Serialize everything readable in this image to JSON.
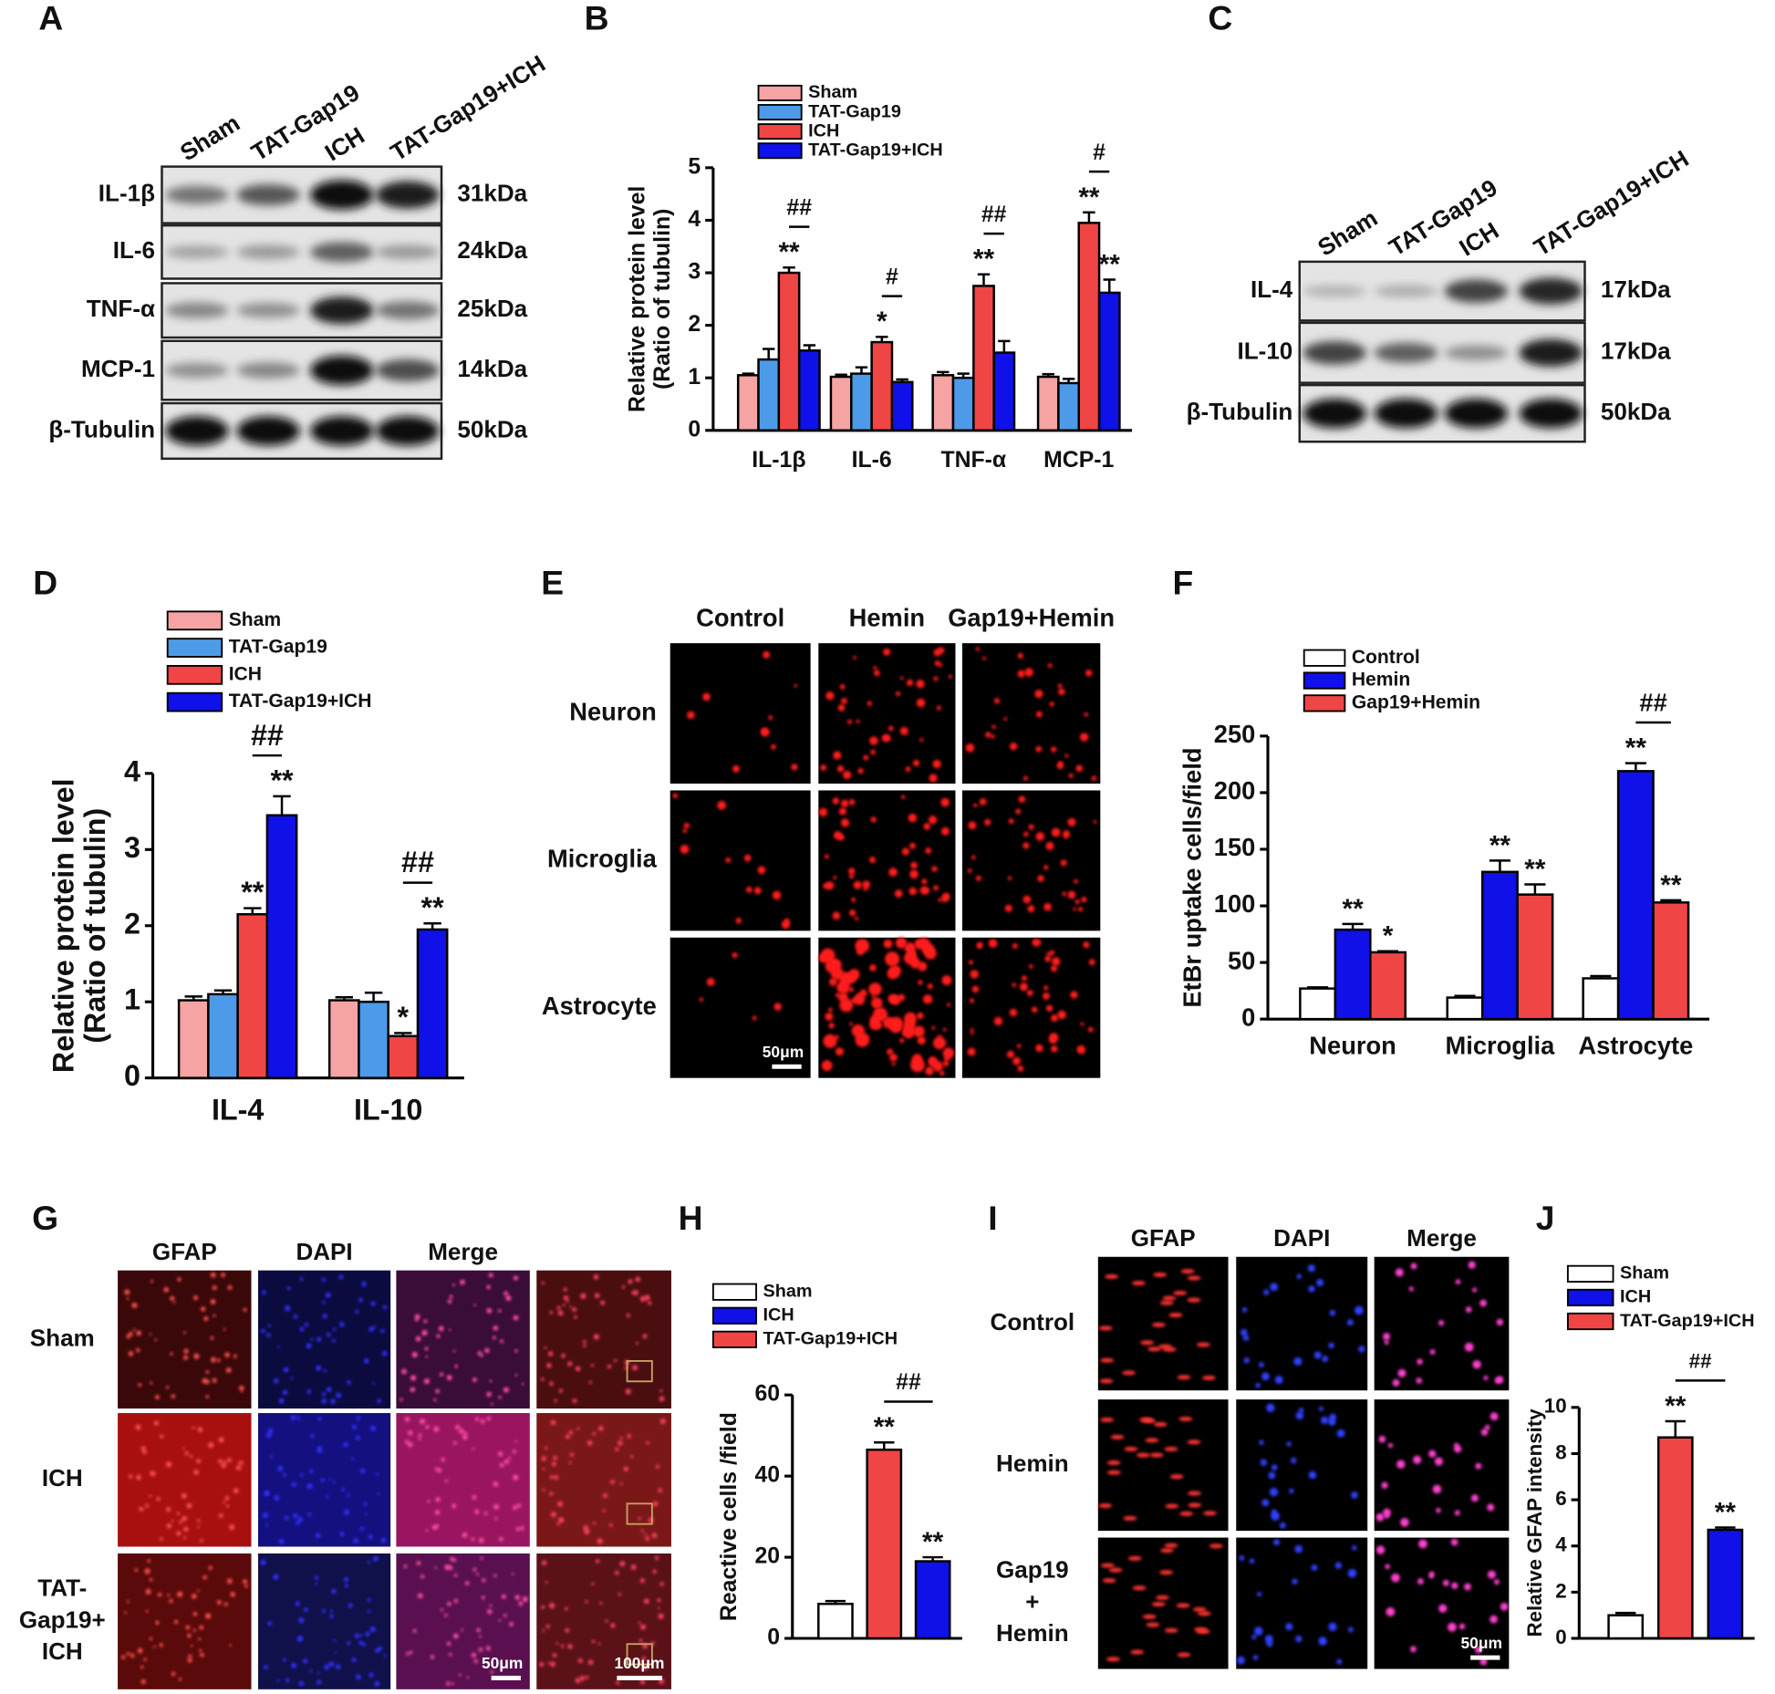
{
  "panel_labels": [
    "A",
    "B",
    "C",
    "D",
    "E",
    "F",
    "G",
    "H",
    "I",
    "J"
  ],
  "blots": [
    {
      "lanes": [
        "Sham",
        "TAT-Gap19",
        "ICH",
        "TAT-Gap19+ICH"
      ],
      "rows": [
        {
          "label": "IL-1β",
          "size": "31kDa"
        },
        {
          "label": "IL-6",
          "size": "24kDa"
        },
        {
          "label": "TNF-α",
          "size": "25kDa"
        },
        {
          "label": "MCP-1",
          "size": "14kDa"
        },
        {
          "label": "β-Tubulin",
          "size": "50kDa"
        }
      ]
    },
    {
      "lanes": [
        "Sham",
        "TAT-Gap19",
        "ICH",
        "TAT-Gap19+ICH"
      ],
      "rows": [
        {
          "label": "IL-4",
          "size": "17kDa"
        },
        {
          "label": "IL-10",
          "size": "17kDa"
        },
        {
          "label": "β-Tubulin",
          "size": "50kDa"
        }
      ]
    }
  ],
  "micrographs": [
    {
      "columns": [
        "Control",
        "Hemin",
        "Gap19+Hemin"
      ],
      "rows": [
        [
          "Neuron"
        ],
        [
          "Microglia"
        ],
        [
          "Astrocyte"
        ]
      ],
      "scale_bars": [
        "50μm"
      ]
    },
    {
      "columns": [
        "GFAP",
        "DAPI",
        "Merge"
      ],
      "rows": [
        [
          "Sham"
        ],
        [
          "ICH"
        ],
        [
          "TAT-",
          "Gap19+",
          "ICH"
        ]
      ],
      "scale_bars": [
        "50μm",
        "100μm"
      ]
    },
    {
      "columns": [
        "GFAP",
        "DAPI",
        "Merge"
      ],
      "rows": [
        [
          "Control"
        ],
        [
          "Hemin"
        ],
        [
          "Gap19",
          "+",
          "Hemin"
        ]
      ],
      "scale_bars": [
        "50μm"
      ]
    }
  ],
  "chart_data": [
    {
      "type": "bar",
      "ylabel": [
        "Relative protein level",
        "(Ratio of tubulin)"
      ],
      "categories": [
        "IL-1β",
        "IL-6",
        "TNF-α",
        "MCP-1"
      ],
      "ylim": [
        0,
        5
      ],
      "yticks": [
        0,
        1,
        2,
        3,
        4,
        5
      ],
      "series": [
        {
          "name": "Sham",
          "color": "#f5a3a3",
          "values": [
            1.05,
            1.02,
            1.05,
            1.02
          ],
          "errors": [
            0.03,
            0.04,
            0.06,
            0.05
          ],
          "annotations": [
            null,
            null,
            null,
            null
          ]
        },
        {
          "name": "TAT-Gap19",
          "color": "#4d9be8",
          "values": [
            1.35,
            1.08,
            1.0,
            0.9
          ],
          "errors": [
            0.2,
            0.12,
            0.08,
            0.08
          ],
          "annotations": [
            null,
            null,
            null,
            null
          ]
        },
        {
          "name": "ICH",
          "color": "#f04545",
          "values": [
            3.0,
            1.68,
            2.75,
            3.95
          ],
          "errors": [
            0.1,
            0.1,
            0.22,
            0.2
          ],
          "annotations": [
            "**",
            "*",
            "**",
            "**"
          ]
        },
        {
          "name": "TAT-Gap19+ICH",
          "color": "#1010e8",
          "values": [
            1.52,
            0.92,
            1.48,
            2.62
          ],
          "errors": [
            0.1,
            0.05,
            0.22,
            0.25
          ],
          "annotations": [
            null,
            null,
            null,
            "**"
          ]
        }
      ],
      "comparisons": [
        "##",
        "#",
        "##",
        "#"
      ]
    },
    {
      "type": "bar",
      "ylabel": [
        "Relative protein level",
        "(Ratio of tubulin)"
      ],
      "categories": [
        "IL-4",
        "IL-10"
      ],
      "ylim": [
        0,
        4
      ],
      "yticks": [
        0,
        1,
        2,
        3,
        4
      ],
      "series": [
        {
          "name": "Sham",
          "color": "#f5a3a3",
          "values": [
            1.02,
            1.02
          ],
          "errors": [
            0.05,
            0.04
          ],
          "annotations": [
            null,
            null
          ]
        },
        {
          "name": "TAT-Gap19",
          "color": "#4d9be8",
          "values": [
            1.1,
            1.0
          ],
          "errors": [
            0.05,
            0.12
          ],
          "annotations": [
            null,
            null
          ]
        },
        {
          "name": "ICH",
          "color": "#f04545",
          "values": [
            2.15,
            0.55
          ],
          "errors": [
            0.08,
            0.04
          ],
          "annotations": [
            "**",
            "*"
          ]
        },
        {
          "name": "TAT-Gap19+ICH",
          "color": "#1010e8",
          "values": [
            3.45,
            1.95
          ],
          "errors": [
            0.25,
            0.08
          ],
          "annotations": [
            "**",
            "**"
          ]
        }
      ],
      "comparisons": [
        "##",
        "##"
      ]
    },
    {
      "type": "bar",
      "ylabel": [
        "EtBr uptake cells/field"
      ],
      "categories": [
        "Neuron",
        "Microglia",
        "Astrocyte"
      ],
      "ylim": [
        0,
        250
      ],
      "yticks": [
        0,
        50,
        100,
        150,
        200,
        250
      ],
      "series": [
        {
          "name": "Control",
          "color": "#ffffff",
          "values": [
            27,
            19,
            36
          ],
          "errors": [
            1,
            1.5,
            2
          ],
          "annotations": [
            null,
            null,
            null
          ]
        },
        {
          "name": "Hemin",
          "color": "#1010e8",
          "values": [
            79,
            130,
            219
          ],
          "errors": [
            5,
            10,
            7
          ],
          "annotations": [
            "**",
            "**",
            "**"
          ]
        },
        {
          "name": "Gap19+Hemin",
          "color": "#f04545",
          "values": [
            59,
            110,
            103
          ],
          "errors": [
            1,
            9,
            2
          ],
          "annotations": [
            "*",
            "**",
            "**"
          ]
        }
      ],
      "comparisons": [
        null,
        null,
        "##"
      ]
    },
    {
      "type": "bar",
      "ylabel": [
        "Reactive cells /field"
      ],
      "ylim": [
        0,
        60
      ],
      "yticks": [
        0,
        20,
        40,
        60
      ],
      "series": [
        {
          "name": "Sham",
          "color": "#ffffff",
          "values": [
            8.5
          ],
          "errors": [
            0.7
          ],
          "annotations": [
            null
          ]
        },
        {
          "name": "ICH",
          "color": "#f04545",
          "legend_color": "#1010e8",
          "values": [
            46.5
          ],
          "errors": [
            1.8
          ],
          "annotations": [
            "**"
          ]
        },
        {
          "name": "TAT-Gap19+ICH",
          "color": "#1010e8",
          "legend_color": "#f04545",
          "values": [
            19
          ],
          "errors": [
            1
          ],
          "annotations": [
            "**"
          ]
        }
      ],
      "comparisons": [
        "##"
      ]
    },
    {
      "type": "bar",
      "ylabel": [
        "Relative GFAP intensity"
      ],
      "ylim": [
        0,
        10
      ],
      "yticks": [
        0,
        2,
        4,
        6,
        8,
        10
      ],
      "series": [
        {
          "name": "Sham",
          "color": "#ffffff",
          "values": [
            1.0
          ],
          "errors": [
            0.1
          ],
          "annotations": [
            null
          ]
        },
        {
          "name": "ICH",
          "color": "#f04545",
          "legend_color": "#1010e8",
          "values": [
            8.7
          ],
          "errors": [
            0.7
          ],
          "annotations": [
            "**"
          ]
        },
        {
          "name": "TAT-Gap19+ICH",
          "color": "#1010e8",
          "legend_color": "#f04545",
          "values": [
            4.7
          ],
          "errors": [
            0.1
          ],
          "annotations": [
            "**"
          ]
        }
      ],
      "comparisons": [
        "##"
      ]
    }
  ]
}
